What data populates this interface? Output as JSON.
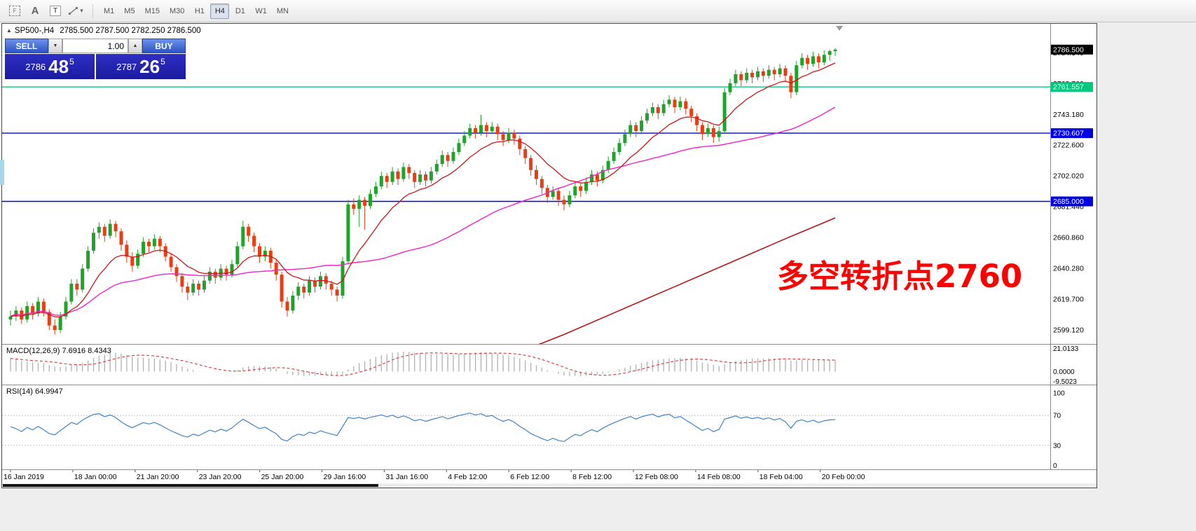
{
  "toolbar": {
    "tools": {
      "selection_glyph": "F",
      "text_glyph": "A",
      "textbox_glyph": "T",
      "draw_caret": "▾"
    },
    "timeframes": [
      "M1",
      "M5",
      "M15",
      "M30",
      "H1",
      "H4",
      "D1",
      "W1",
      "MN"
    ],
    "active_timeframe": "H4"
  },
  "chart": {
    "header": {
      "collapse_glyph": "▲",
      "symbol": "SP500-,H4",
      "ohlc_text": "2785.500 2787.500 2782.250 2786.500"
    },
    "trade_panel": {
      "sell_label": "SELL",
      "buy_label": "BUY",
      "volume": "1.00",
      "spin_down": "▼",
      "spin_up": "▲",
      "bid_main": "2786",
      "bid_big": "48",
      "bid_sup": "5",
      "ask_main": "2787",
      "ask_big": "26",
      "ask_sup": "5"
    },
    "indicator_labels": {
      "macd": "MACD(12,26,9) 7.6916 8.4343",
      "rsi": "RSI(14) 64.9947"
    }
  },
  "chart_data": {
    "type": "candlestick",
    "symbol": "SP500",
    "timeframe": "H4",
    "y_range": [
      2592,
      2800
    ],
    "current_price": 2786.5,
    "current_price_label": "2786.500",
    "price_axis_labels": [
      "2784.340",
      "2763.760",
      "2743.180",
      "2722.600",
      "2702.020",
      "2681.440",
      "2660.860",
      "2640.280",
      "2619.700",
      "2599.120"
    ],
    "hlines": [
      {
        "price": 2761.557,
        "label": "2761.557",
        "color": "#00c87d"
      },
      {
        "price": 2730.607,
        "label": "2730.607",
        "color": "#0000e6"
      },
      {
        "price": 2685.0,
        "label": "2685.000",
        "color": "#0000e6"
      }
    ],
    "time_labels": [
      "16 Jan 2019",
      "18 Jan 00:00",
      "21 Jan 20:00",
      "23 Jan 20:00",
      "25 Jan 20:00",
      "29 Jan 16:00",
      "31 Jan 16:00",
      "4 Feb 12:00",
      "6 Feb 12:00",
      "8 Feb 12:00",
      "12 Feb 08:00",
      "14 Feb 08:00",
      "18 Feb 04:00",
      "20 Feb 00:00"
    ],
    "colors": {
      "up": "#1fa32b",
      "down": "#ea3d14",
      "background": "#ffffff"
    },
    "moving_averages": {
      "fast_period": 12,
      "mid_period": 48,
      "colors": {
        "fast": "#cc1616",
        "mid": "#f024c8",
        "slow": "#b31414"
      },
      "slow_polyline": [
        [
          85,
          2574
        ],
        [
          100,
          2596
        ],
        [
          110,
          2612
        ],
        [
          120,
          2628
        ],
        [
          130,
          2644
        ],
        [
          140,
          2660
        ],
        [
          149,
          2674
        ]
      ]
    },
    "macd": {
      "params": [
        12,
        26,
        9
      ],
      "value": 7.6916,
      "signal_value": 8.4343,
      "range": [
        -10,
        22
      ],
      "axis_labels": [
        "21.0133",
        "0.0000",
        "-9.5023"
      ],
      "histogram_color": "#b0b0b0",
      "signal_color": "#d93434"
    },
    "rsi": {
      "period": 14,
      "value": 64.9947,
      "levels": [
        70,
        30
      ],
      "axis_labels": [
        "100",
        "70",
        "30",
        "0"
      ],
      "color": "#3d85c6"
    },
    "annotation": {
      "text": "多空转折点2760",
      "color": "#ff0000"
    },
    "ohlc": [
      [
        2606,
        2612,
        2602,
        2608
      ],
      [
        2608,
        2615,
        2605,
        2612
      ],
      [
        2612,
        2614,
        2603,
        2606
      ],
      [
        2606,
        2618,
        2604,
        2615
      ],
      [
        2615,
        2617,
        2606,
        2610
      ],
      [
        2610,
        2621,
        2608,
        2618
      ],
      [
        2618,
        2620,
        2608,
        2611
      ],
      [
        2611,
        2613,
        2599,
        2602
      ],
      [
        2602,
        2606,
        2596,
        2599
      ],
      [
        2599,
        2611,
        2597,
        2608
      ],
      [
        2608,
        2621,
        2606,
        2618
      ],
      [
        2618,
        2633,
        2616,
        2630
      ],
      [
        2630,
        2633,
        2622,
        2626
      ],
      [
        2626,
        2643,
        2624,
        2640
      ],
      [
        2640,
        2655,
        2638,
        2652
      ],
      [
        2652,
        2667,
        2650,
        2664
      ],
      [
        2664,
        2671,
        2660,
        2668
      ],
      [
        2668,
        2670,
        2658,
        2662
      ],
      [
        2662,
        2673,
        2660,
        2670
      ],
      [
        2670,
        2672,
        2661,
        2665
      ],
      [
        2665,
        2667,
        2652,
        2656
      ],
      [
        2656,
        2659,
        2644,
        2648
      ],
      [
        2648,
        2651,
        2638,
        2642
      ],
      [
        2642,
        2653,
        2640,
        2650
      ],
      [
        2650,
        2661,
        2648,
        2658
      ],
      [
        2658,
        2660,
        2651,
        2655
      ],
      [
        2655,
        2663,
        2653,
        2660
      ],
      [
        2660,
        2662,
        2651,
        2655
      ],
      [
        2655,
        2657,
        2645,
        2648
      ],
      [
        2648,
        2650,
        2638,
        2641
      ],
      [
        2641,
        2643,
        2631,
        2635
      ],
      [
        2635,
        2637,
        2624,
        2628
      ],
      [
        2628,
        2631,
        2619,
        2624
      ],
      [
        2624,
        2633,
        2622,
        2630
      ],
      [
        2630,
        2632,
        2622,
        2626
      ],
      [
        2626,
        2635,
        2624,
        2632
      ],
      [
        2632,
        2641,
        2630,
        2638
      ],
      [
        2638,
        2640,
        2630,
        2634
      ],
      [
        2634,
        2643,
        2632,
        2640
      ],
      [
        2640,
        2642,
        2632,
        2636
      ],
      [
        2636,
        2646,
        2634,
        2643
      ],
      [
        2643,
        2658,
        2641,
        2655
      ],
      [
        2655,
        2672,
        2653,
        2668
      ],
      [
        2668,
        2670,
        2658,
        2662
      ],
      [
        2662,
        2664,
        2651,
        2655
      ],
      [
        2655,
        2657,
        2644,
        2648
      ],
      [
        2648,
        2655,
        2645,
        2652
      ],
      [
        2652,
        2654,
        2640,
        2644
      ],
      [
        2644,
        2646,
        2632,
        2636
      ],
      [
        2636,
        2638,
        2614,
        2618
      ],
      [
        2618,
        2621,
        2608,
        2612
      ],
      [
        2612,
        2625,
        2610,
        2622
      ],
      [
        2622,
        2631,
        2619,
        2628
      ],
      [
        2628,
        2630,
        2620,
        2624
      ],
      [
        2624,
        2635,
        2622,
        2632
      ],
      [
        2632,
        2634,
        2624,
        2628
      ],
      [
        2628,
        2638,
        2626,
        2635
      ],
      [
        2635,
        2637,
        2626,
        2630
      ],
      [
        2630,
        2632,
        2622,
        2626
      ],
      [
        2626,
        2628,
        2618,
        2622
      ],
      [
        2622,
        2648,
        2620,
        2645
      ],
      [
        2645,
        2686,
        2643,
        2683
      ],
      [
        2683,
        2687,
        2676,
        2680
      ],
      [
        2680,
        2689,
        2668,
        2686
      ],
      [
        2686,
        2688,
        2666,
        2682
      ],
      [
        2682,
        2693,
        2680,
        2690
      ],
      [
        2690,
        2698,
        2688,
        2695
      ],
      [
        2695,
        2705,
        2693,
        2702
      ],
      [
        2702,
        2704,
        2694,
        2698
      ],
      [
        2698,
        2708,
        2696,
        2705
      ],
      [
        2705,
        2707,
        2696,
        2700
      ],
      [
        2700,
        2711,
        2698,
        2708
      ],
      [
        2708,
        2710,
        2700,
        2704
      ],
      [
        2704,
        2706,
        2694,
        2698
      ],
      [
        2698,
        2706,
        2696,
        2703
      ],
      [
        2703,
        2705,
        2695,
        2699
      ],
      [
        2699,
        2708,
        2697,
        2705
      ],
      [
        2705,
        2713,
        2703,
        2710
      ],
      [
        2710,
        2719,
        2708,
        2716
      ],
      [
        2716,
        2718,
        2708,
        2712
      ],
      [
        2712,
        2721,
        2710,
        2718
      ],
      [
        2718,
        2727,
        2716,
        2724
      ],
      [
        2724,
        2732,
        2722,
        2729
      ],
      [
        2729,
        2737,
        2727,
        2734
      ],
      [
        2734,
        2736,
        2727,
        2731
      ],
      [
        2731,
        2743,
        2729,
        2736
      ],
      [
        2736,
        2738,
        2728,
        2732
      ],
      [
        2732,
        2738,
        2730,
        2735
      ],
      [
        2735,
        2737,
        2726,
        2730
      ],
      [
        2730,
        2732,
        2722,
        2726
      ],
      [
        2726,
        2734,
        2724,
        2731
      ],
      [
        2731,
        2733,
        2723,
        2727
      ],
      [
        2727,
        2729,
        2716,
        2720
      ],
      [
        2720,
        2722,
        2710,
        2714
      ],
      [
        2714,
        2716,
        2702,
        2706
      ],
      [
        2706,
        2709,
        2696,
        2700
      ],
      [
        2700,
        2702,
        2690,
        2694
      ],
      [
        2694,
        2696,
        2684,
        2688
      ],
      [
        2688,
        2695,
        2686,
        2692
      ],
      [
        2692,
        2694,
        2682,
        2686
      ],
      [
        2686,
        2689,
        2679,
        2683
      ],
      [
        2683,
        2692,
        2681,
        2689
      ],
      [
        2689,
        2698,
        2687,
        2695
      ],
      [
        2695,
        2697,
        2688,
        2692
      ],
      [
        2692,
        2701,
        2690,
        2698
      ],
      [
        2698,
        2706,
        2696,
        2703
      ],
      [
        2703,
        2705,
        2695,
        2699
      ],
      [
        2699,
        2709,
        2697,
        2706
      ],
      [
        2706,
        2715,
        2704,
        2712
      ],
      [
        2712,
        2721,
        2710,
        2718
      ],
      [
        2718,
        2727,
        2716,
        2724
      ],
      [
        2724,
        2733,
        2722,
        2730
      ],
      [
        2730,
        2739,
        2728,
        2736
      ],
      [
        2736,
        2738,
        2728,
        2732
      ],
      [
        2732,
        2742,
        2730,
        2739
      ],
      [
        2739,
        2747,
        2737,
        2744
      ],
      [
        2744,
        2751,
        2742,
        2748
      ],
      [
        2748,
        2750,
        2740,
        2744
      ],
      [
        2744,
        2753,
        2742,
        2750
      ],
      [
        2750,
        2756,
        2748,
        2753
      ],
      [
        2753,
        2755,
        2744,
        2748
      ],
      [
        2748,
        2755,
        2746,
        2752
      ],
      [
        2752,
        2754,
        2743,
        2747
      ],
      [
        2747,
        2749,
        2738,
        2742
      ],
      [
        2742,
        2744,
        2732,
        2736
      ],
      [
        2736,
        2738,
        2726,
        2730
      ],
      [
        2730,
        2737,
        2728,
        2734
      ],
      [
        2734,
        2736,
        2724,
        2728
      ],
      [
        2728,
        2735,
        2725,
        2732
      ],
      [
        2732,
        2761,
        2730,
        2758
      ],
      [
        2758,
        2767,
        2756,
        2764
      ],
      [
        2764,
        2773,
        2762,
        2770
      ],
      [
        2770,
        2772,
        2762,
        2766
      ],
      [
        2766,
        2774,
        2764,
        2771
      ],
      [
        2771,
        2773,
        2764,
        2768
      ],
      [
        2768,
        2775,
        2766,
        2772
      ],
      [
        2772,
        2774,
        2765,
        2769
      ],
      [
        2769,
        2776,
        2767,
        2773
      ],
      [
        2773,
        2775,
        2766,
        2770
      ],
      [
        2770,
        2777,
        2768,
        2774
      ],
      [
        2774,
        2776,
        2765,
        2769
      ],
      [
        2769,
        2771,
        2754,
        2758
      ],
      [
        2758,
        2779,
        2756,
        2776
      ],
      [
        2776,
        2784,
        2774,
        2781
      ],
      [
        2781,
        2783,
        2773,
        2777
      ],
      [
        2777,
        2785,
        2775,
        2782
      ],
      [
        2782,
        2784,
        2774,
        2778
      ],
      [
        2778,
        2786,
        2776,
        2783
      ],
      [
        2783,
        2786.5,
        2779,
        2785.5
      ],
      [
        2785.5,
        2787.5,
        2782.25,
        2786.5
      ]
    ]
  }
}
